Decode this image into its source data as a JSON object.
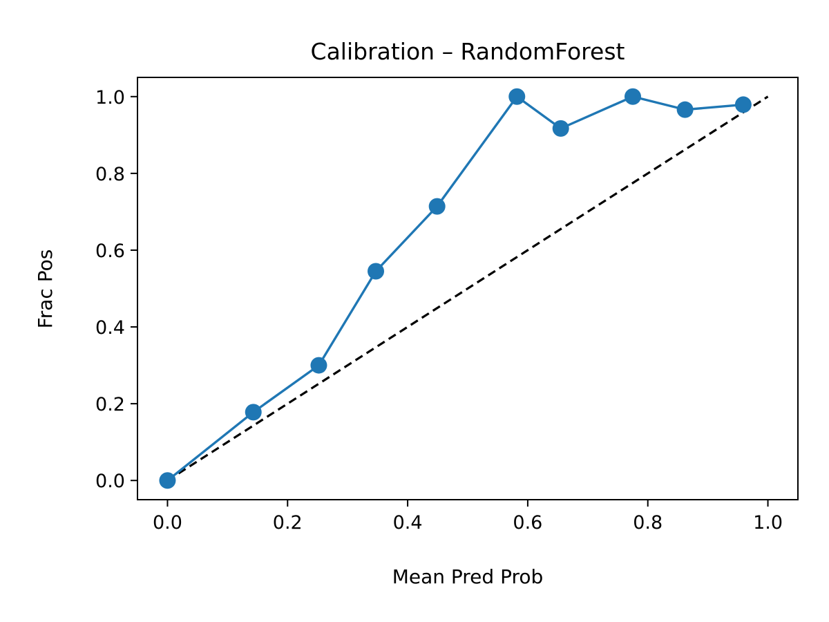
{
  "chart_data": {
    "type": "line",
    "title": "Calibration – RandomForest",
    "xlabel": "Mean Pred Prob",
    "ylabel": "Frac Pos",
    "xlim": [
      -0.05,
      1.05
    ],
    "ylim": [
      -0.05,
      1.05
    ],
    "grid": false,
    "xticks": [
      0.0,
      0.2,
      0.4,
      0.6,
      0.8,
      1.0
    ],
    "xtick_labels": [
      "0.0",
      "0.2",
      "0.4",
      "0.6",
      "0.8",
      "1.0"
    ],
    "yticks": [
      0.0,
      0.2,
      0.4,
      0.6,
      0.8,
      1.0
    ],
    "ytick_labels": [
      "0.0",
      "0.2",
      "0.4",
      "0.6",
      "0.8",
      "1.0"
    ],
    "series": [
      {
        "style": "solid",
        "marker": "circle",
        "color": "#1f77b4",
        "x": [
          0.0,
          0.143,
          0.252,
          0.347,
          0.449,
          0.582,
          0.655,
          0.775,
          0.862,
          0.959
        ],
        "y": [
          0.0,
          0.178,
          0.3,
          0.545,
          0.714,
          1.0,
          0.917,
          1.0,
          0.966,
          0.979
        ]
      },
      {
        "style": "dashed",
        "marker": "none",
        "color": "#000000",
        "x": [
          0.0,
          1.0
        ],
        "y": [
          0.0,
          1.0
        ]
      }
    ]
  }
}
